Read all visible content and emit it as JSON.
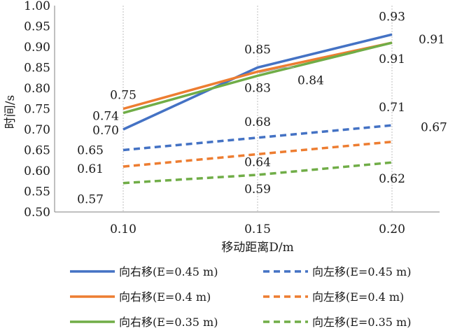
{
  "chart_data": {
    "type": "line",
    "x": [
      "0.10",
      "0.15",
      "0.20"
    ],
    "xlabel": "移动距离D/m",
    "ylabel": "时间/s",
    "ylim": [
      0.5,
      1.0
    ],
    "yticks": [
      "0.50",
      "0.55",
      "0.60",
      "0.65",
      "0.70",
      "0.75",
      "0.80",
      "0.85",
      "0.90",
      "0.95",
      "1.00"
    ],
    "grid": "vertical dotted lines at x ticks",
    "legend_position": "bottom",
    "series": [
      {
        "name": "向右移(E=0.45 m)",
        "values": [
          0.7,
          0.85,
          0.93
        ],
        "labels": [
          "0.70",
          "0.85",
          "0.93"
        ],
        "color": "#4472C4",
        "dash": "solid"
      },
      {
        "name": "向右移(E=0.4 m)",
        "values": [
          0.75,
          0.84,
          0.91
        ],
        "labels": [
          "0.75",
          "0.84",
          "0.91"
        ],
        "color": "#ED7D31",
        "dash": "solid"
      },
      {
        "name": "向右移(E=0.35 m)",
        "values": [
          0.74,
          0.83,
          0.91
        ],
        "labels": [
          "0.74",
          "0.83",
          "0.91"
        ],
        "color": "#70AD47",
        "dash": "solid"
      },
      {
        "name": "向左移(E=0.45 m)",
        "values": [
          0.65,
          0.68,
          0.71
        ],
        "labels": [
          "0.65",
          "0.68",
          "0.71"
        ],
        "color": "#4472C4",
        "dash": "dashed"
      },
      {
        "name": "向左移(E=0.4 m)",
        "values": [
          0.61,
          0.64,
          0.67
        ],
        "labels": [
          "0.61",
          "0.64",
          "0.67"
        ],
        "color": "#ED7D31",
        "dash": "dashed"
      },
      {
        "name": "向左移(E=0.35 m)",
        "values": [
          0.57,
          0.59,
          0.62
        ],
        "labels": [
          "0.57",
          "0.59",
          "0.62"
        ],
        "color": "#70AD47",
        "dash": "dashed"
      }
    ]
  }
}
